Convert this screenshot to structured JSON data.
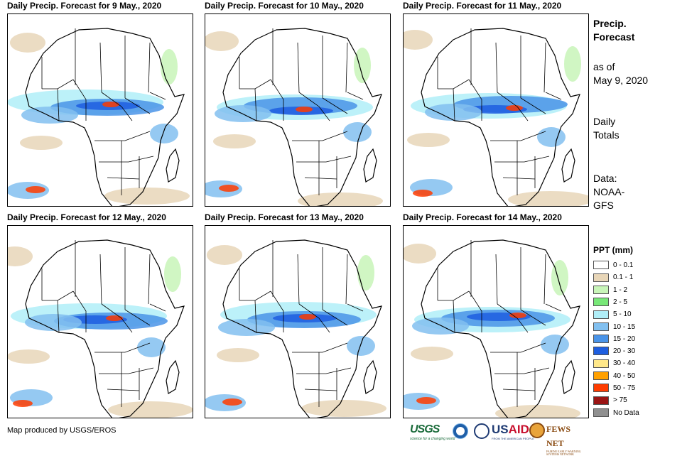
{
  "panels": [
    {
      "title": "Daily Precip. Forecast for 9 May., 2020"
    },
    {
      "title": "Daily Precip. Forecast for 10 May., 2020"
    },
    {
      "title": "Daily Precip. Forecast for 11 May., 2020"
    },
    {
      "title": "Daily Precip. Forecast for 12 May., 2020"
    },
    {
      "title": "Daily Precip. Forecast for 13 May., 2020"
    },
    {
      "title": "Daily Precip. Forecast for 14 May., 2020"
    }
  ],
  "side": {
    "heading_line1": "Precip.",
    "heading_line2": "Forecast",
    "asof_line1": "as of",
    "asof_line2": "May 9, 2020",
    "totals_line1": "Daily",
    "totals_line2": "Totals",
    "data_line1": "Data:",
    "data_line2": "NOAA-",
    "data_line3": "GFS"
  },
  "legend": {
    "title": "PPT (mm)",
    "items": [
      {
        "label": "0 - 0.1",
        "color": "#ffffff"
      },
      {
        "label": "0.1 - 1",
        "color": "#e8d6b8"
      },
      {
        "label": "1 - 2",
        "color": "#c8f5b8"
      },
      {
        "label": "2 - 5",
        "color": "#78e878"
      },
      {
        "label": "5 - 10",
        "color": "#b0eef8"
      },
      {
        "label": "10 - 15",
        "color": "#82c0f0"
      },
      {
        "label": "15 - 20",
        "color": "#4a94e8"
      },
      {
        "label": "20 - 30",
        "color": "#1e5ee0"
      },
      {
        "label": "30 - 40",
        "color": "#ffe88a"
      },
      {
        "label": "40 - 50",
        "color": "#ffa000"
      },
      {
        "label": "50 - 75",
        "color": "#ff3c00"
      },
      {
        "label": "> 75",
        "color": "#9a1414"
      },
      {
        "label": "No Data",
        "color": "#909090"
      }
    ]
  },
  "credit": "Map produced by USGS/EROS",
  "logos": {
    "usgs": "USGS",
    "usgs_tag": "science for a changing world",
    "usaid_a": "US",
    "usaid_b": "AID",
    "usaid_tag": "FROM THE AMERICAN PEOPLE",
    "fews": "FEWS NET",
    "fews_tag": "FAMINE EARLY WARNING SYSTEMS NETWORK"
  }
}
